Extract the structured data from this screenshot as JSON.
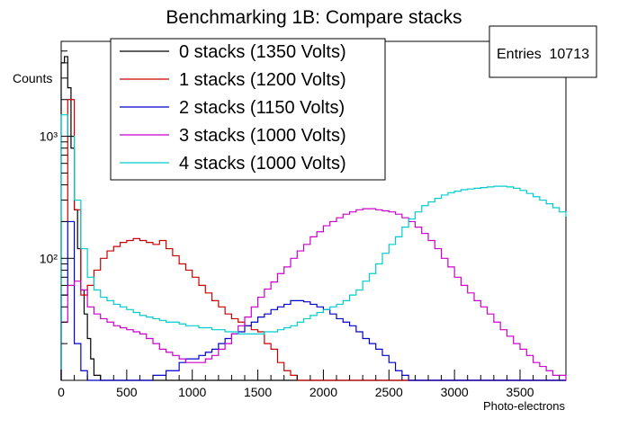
{
  "chart_data": {
    "type": "line",
    "title": "Benchmarking 1B: Compare stacks",
    "xlabel": "Photo-electrons",
    "ylabel": "Counts",
    "xlim": [
      0,
      3850
    ],
    "ylim": [
      10,
      6000
    ],
    "yscale": "log",
    "x_ticks": [
      0,
      500,
      1000,
      1500,
      2000,
      2500,
      3000,
      3500
    ],
    "y_ticks": [
      {
        "value": 100,
        "label": "10²"
      },
      {
        "value": 1000,
        "label": "10³"
      }
    ],
    "stats_box": {
      "label": "Entries",
      "value": "10713"
    },
    "legend_position": "top-left",
    "series": [
      {
        "name": "0 stacks (1350 Volts)",
        "color": "#000000",
        "x": [
          0,
          25,
          50,
          75,
          100,
          125,
          150,
          175,
          200,
          225,
          250,
          300
        ],
        "y": [
          4000,
          4500,
          2500,
          800,
          250,
          120,
          55,
          35,
          22,
          15,
          11,
          10
        ]
      },
      {
        "name": "1 stacks (1200 Volts)",
        "color": "#cc0000",
        "x": [
          0,
          50,
          100,
          150,
          200,
          250,
          300,
          350,
          400,
          450,
          500,
          550,
          600,
          650,
          700,
          750,
          800,
          850,
          900,
          950,
          1000,
          1050,
          1100,
          1150,
          1200,
          1250,
          1300,
          1350,
          1400,
          1450,
          1500,
          1550,
          1600,
          1650,
          1700,
          1750,
          1800,
          1850,
          1900,
          1950,
          2000,
          2050,
          2100,
          2150,
          2200,
          2300,
          2500,
          2700,
          2900,
          3100,
          3300,
          3500,
          3700,
          3850
        ],
        "y": [
          200,
          2000,
          250,
          50,
          60,
          80,
          100,
          115,
          125,
          135,
          140,
          145,
          140,
          135,
          130,
          140,
          120,
          105,
          90,
          80,
          70,
          60,
          52,
          45,
          40,
          35,
          32,
          30,
          28,
          26,
          25,
          20,
          18,
          14,
          12,
          11,
          10,
          10,
          10,
          10,
          10,
          10,
          10,
          10,
          10,
          10,
          10,
          10,
          10,
          10,
          10,
          10,
          10,
          10
        ]
      },
      {
        "name": "2 stacks (1150 Volts)",
        "color": "#0000cc",
        "x": [
          0,
          50,
          100,
          150,
          200,
          250,
          300,
          350,
          400,
          450,
          500,
          550,
          600,
          650,
          700,
          750,
          800,
          850,
          900,
          950,
          1000,
          1050,
          1100,
          1150,
          1200,
          1250,
          1300,
          1350,
          1400,
          1450,
          1500,
          1550,
          1600,
          1650,
          1700,
          1750,
          1800,
          1850,
          1900,
          1950,
          2000,
          2050,
          2100,
          2150,
          2200,
          2250,
          2300,
          2350,
          2400,
          2450,
          2500,
          2550,
          2600,
          2650,
          2700,
          2800,
          2900,
          3000,
          3100,
          3200,
          3300,
          3400,
          3500,
          3600,
          3700,
          3850
        ],
        "y": [
          50,
          200,
          20,
          12,
          10,
          10,
          10,
          10,
          10,
          10,
          10,
          10,
          10,
          10,
          11,
          11,
          12,
          12,
          14,
          15,
          15,
          16,
          17,
          18,
          20,
          22,
          24,
          25,
          28,
          30,
          33,
          35,
          38,
          40,
          42,
          45,
          45,
          44,
          42,
          40,
          38,
          35,
          32,
          30,
          28,
          25,
          22,
          20,
          18,
          16,
          14,
          12,
          11,
          10,
          10,
          10,
          10,
          10,
          10,
          10,
          10,
          10,
          10,
          10,
          10,
          10
        ]
      },
      {
        "name": "3 stacks (1000 Volts)",
        "color": "#cc00cc",
        "x": [
          0,
          50,
          100,
          150,
          200,
          250,
          300,
          350,
          400,
          450,
          500,
          550,
          600,
          650,
          700,
          750,
          800,
          850,
          900,
          950,
          1000,
          1050,
          1100,
          1150,
          1200,
          1250,
          1300,
          1350,
          1400,
          1450,
          1500,
          1550,
          1600,
          1650,
          1700,
          1750,
          1800,
          1850,
          1900,
          1950,
          2000,
          2050,
          2100,
          2150,
          2200,
          2250,
          2300,
          2350,
          2400,
          2450,
          2500,
          2550,
          2600,
          2650,
          2700,
          2750,
          2800,
          2850,
          2900,
          2950,
          3000,
          3050,
          3100,
          3150,
          3200,
          3250,
          3300,
          3350,
          3400,
          3450,
          3500,
          3550,
          3600,
          3650,
          3700,
          3750,
          3800,
          3850
        ],
        "y": [
          30,
          60,
          65,
          55,
          40,
          35,
          32,
          30,
          28,
          27,
          26,
          25,
          24,
          22,
          20,
          18,
          17,
          16,
          15,
          14,
          14,
          14,
          15,
          16,
          18,
          20,
          24,
          28,
          33,
          40,
          48,
          56,
          64,
          75,
          85,
          100,
          115,
          130,
          150,
          165,
          185,
          200,
          215,
          230,
          240,
          250,
          255,
          255,
          250,
          245,
          240,
          230,
          215,
          200,
          180,
          160,
          140,
          120,
          100,
          85,
          70,
          60,
          52,
          45,
          40,
          35,
          30,
          26,
          23,
          20,
          18,
          16,
          14,
          13,
          12,
          11,
          11,
          10
        ]
      },
      {
        "name": "4 stacks (1000 Volts)",
        "color": "#00cccc",
        "x": [
          0,
          50,
          100,
          150,
          200,
          250,
          300,
          350,
          400,
          450,
          500,
          550,
          600,
          650,
          700,
          750,
          800,
          850,
          900,
          950,
          1000,
          1050,
          1100,
          1150,
          1200,
          1250,
          1300,
          1350,
          1400,
          1450,
          1500,
          1550,
          1600,
          1650,
          1700,
          1750,
          1800,
          1850,
          1900,
          1950,
          2000,
          2050,
          2100,
          2150,
          2200,
          2250,
          2300,
          2350,
          2400,
          2450,
          2500,
          2550,
          2600,
          2650,
          2700,
          2750,
          2800,
          2850,
          2900,
          2950,
          3000,
          3050,
          3100,
          3150,
          3200,
          3250,
          3300,
          3350,
          3400,
          3450,
          3500,
          3550,
          3600,
          3650,
          3700,
          3750,
          3800,
          3850
        ],
        "y": [
          1500,
          1000,
          300,
          120,
          70,
          55,
          48,
          45,
          42,
          40,
          38,
          36,
          34,
          33,
          32,
          31,
          30,
          30,
          29,
          28,
          28,
          27,
          27,
          26,
          26,
          25,
          25,
          24,
          24,
          24,
          24,
          25,
          25,
          26,
          27,
          28,
          30,
          32,
          34,
          36,
          38,
          40,
          42,
          45,
          50,
          55,
          65,
          75,
          90,
          110,
          130,
          150,
          180,
          210,
          240,
          270,
          290,
          310,
          330,
          345,
          355,
          365,
          370,
          375,
          380,
          385,
          390,
          390,
          385,
          375,
          360,
          340,
          320,
          300,
          280,
          260,
          240,
          220
        ]
      }
    ]
  }
}
